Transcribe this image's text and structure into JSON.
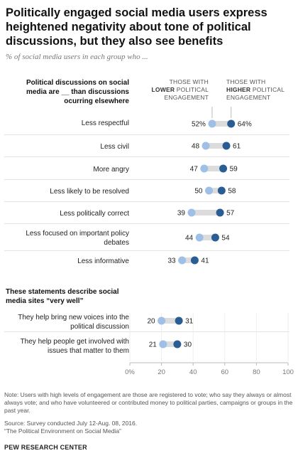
{
  "title": "Politically engaged social media users express heightened negativity about tone of political discussions, but they also see benefits",
  "subtitle": "% of social media users in each group who ...",
  "column_headers": {
    "lower": [
      "THOSE WITH",
      "LOWER POLITICAL",
      "ENGAGEMENT"
    ],
    "lower_bold_word": "LOWER",
    "higher": [
      "THOSE WITH",
      "HIGHER POLITICAL",
      "ENGAGEMENT"
    ],
    "higher_bold_word": "HIGHER"
  },
  "section1_heading": [
    "Political discussions on social",
    "media are __ than discussions",
    "ocurring elsewhere"
  ],
  "section2_heading": [
    "These statements describe social",
    "media sites “very well”"
  ],
  "row_labels": {
    "r0": [
      "Less respectful"
    ],
    "r1": [
      "Less civil"
    ],
    "r2": [
      "More angry"
    ],
    "r3": [
      "Less likely to be resolved"
    ],
    "r4": [
      "Less politically correct"
    ],
    "r5": [
      "Less focused on important policy",
      "debates"
    ],
    "r6": [
      "Less informative"
    ],
    "r7": [
      "They help bring new voices into the",
      "political discussion"
    ],
    "r8": [
      "They help people get involved with",
      "issues that matter to them"
    ]
  },
  "chart_data": {
    "type": "scatter",
    "series": [
      {
        "name": "Those with lower political engagement",
        "color": "#9ec0e6",
        "values": [
          52,
          48,
          47,
          50,
          39,
          44,
          33,
          20,
          21
        ]
      },
      {
        "name": "Those with higher political engagement",
        "color": "#2b5d95",
        "values": [
          64,
          61,
          59,
          58,
          57,
          54,
          41,
          31,
          30
        ]
      }
    ],
    "value_labels": {
      "lower": [
        "52%",
        "48",
        "47",
        "50",
        "39",
        "44",
        "33",
        "20",
        "21"
      ],
      "higher": [
        "64%",
        "61",
        "59",
        "58",
        "57",
        "54",
        "41",
        "31",
        "30"
      ]
    },
    "xlim": [
      0,
      100
    ],
    "x_ticks": [
      "0%",
      "20",
      "40",
      "60",
      "80",
      "100"
    ],
    "connector_color": "#dcdcdc",
    "gridline_color": "#eeeeee"
  },
  "note": "Note: Users with high levels of engagement are those are registered to vote; who say they always or almost always vote; and who have volunteered or contributed money to political parties, campaigns or groups in the past year.",
  "source": [
    "Source: Survey conducted July 12-Aug. 08, 2016.",
    "“The Political Environment on Social Media”"
  ],
  "brand": "PEW RESEARCH CENTER"
}
